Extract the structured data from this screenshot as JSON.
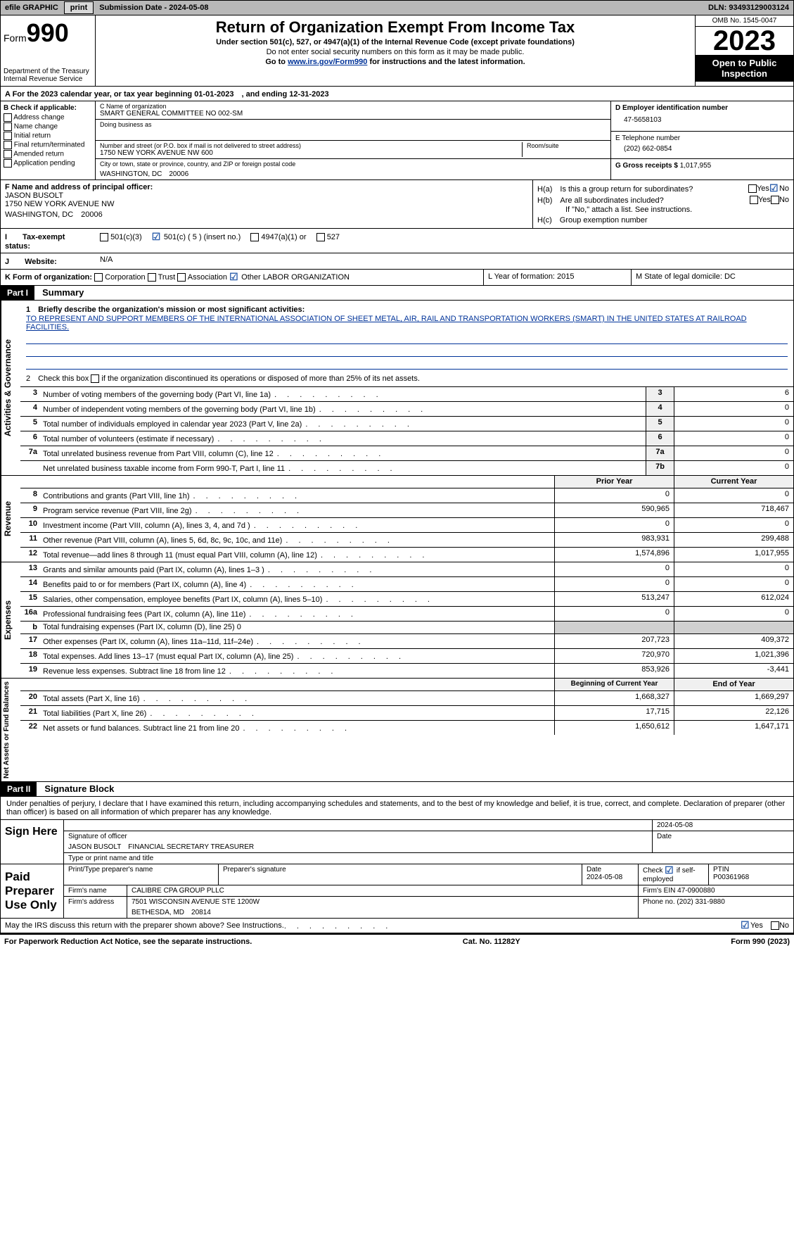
{
  "topbar": {
    "efile": "efile GRAPHIC",
    "print": "print",
    "sub_label": "Submission Date - 2024-05-08",
    "dln_label": "DLN: 93493129003124"
  },
  "header": {
    "form_word": "Form",
    "form_num": "990",
    "dept": "Department of the Treasury\nInternal Revenue Service",
    "title": "Return of Organization Exempt From Income Tax",
    "sub1": "Under section 501(c), 527, or 4947(a)(1) of the Internal Revenue Code (except private foundations)",
    "sub2": "Do not enter social security numbers on this form as it may be made public.",
    "sub3_pre": "Go to ",
    "sub3_link": "www.irs.gov/Form990",
    "sub3_post": " for instructions and the latest information.",
    "omb": "OMB No. 1545-0047",
    "year": "2023",
    "otp": "Open to Public Inspection"
  },
  "rowA": "A For the 2023 calendar year, or tax year beginning 01-01-2023　, and ending 12-31-2023",
  "colB": {
    "header": "B Check if applicable:",
    "opts": [
      "Address change",
      "Name change",
      "Initial return",
      "Final return/terminated",
      "Amended return",
      "Application pending"
    ]
  },
  "colC": {
    "name_label": "C Name of organization",
    "name": "SMART GENERAL COMMITTEE NO 002-SM",
    "dba_label": "Doing business as",
    "dba": "",
    "addr_label": "Number and street (or P.O. box if mail is not delivered to street address)",
    "addr": "1750 NEW YORK AVENUE NW 600",
    "room_label": "Room/suite",
    "room": "",
    "city_label": "City or town, state or province, country, and ZIP or foreign postal code",
    "city": "WASHINGTON, DC　20006"
  },
  "colDE": {
    "d_label": "D Employer identification number",
    "d_val": "47-5658103",
    "e_label": "E Telephone number",
    "e_val": "(202) 662-0854",
    "g_label": "G Gross receipts $",
    "g_val": "1,017,955"
  },
  "colF": {
    "label": "F Name and address of principal officer:",
    "name": "JASON BUSOLT",
    "addr1": "1750 NEW YORK AVENUE NW",
    "addr2": "WASHINGTON, DC　20006"
  },
  "colH": {
    "ha": "H(a)　Is this a group return for subordinates?",
    "hb": "H(b)　Are all subordinates included?",
    "hb_note": "If \"No,\" attach a list. See instructions.",
    "hc": "H(c)　Group exemption number"
  },
  "rowI": {
    "label": "I　　Tax-exempt status:",
    "o1": "501(c)(3)",
    "o2": "501(c) ( 5 ) (insert no.)",
    "o3": "4947(a)(1) or",
    "o4": "527"
  },
  "rowJ": {
    "label": "J　　Website:",
    "val": "N/A"
  },
  "rowK": {
    "k_pre": "K Form of organization:",
    "k_opts": [
      "Corporation",
      "Trust",
      "Association",
      "Other"
    ],
    "k_other": "LABOR ORGANIZATION",
    "l": "L Year of formation: 2015",
    "m": "M State of legal domicile: DC"
  },
  "part1": {
    "bar": "Part I",
    "title": "Summary"
  },
  "mission": {
    "q1_label": "1　Briefly describe the organization's mission or most significant activities:",
    "q1_text": "TO REPRESENT AND SUPPORT MEMBERS OF THE INTERNATIONAL ASSOCIATION OF SHEET METAL, AIR, RAIL AND TRANSPORTATION WORKERS (SMART) IN THE UNITED STATES AT RAILROAD FACILITIES.",
    "q2": "2　Check this box　　if the organization discontinued its operations or disposed of more than 25% of its net assets."
  },
  "gov_rows": [
    {
      "n": "3",
      "d": "Number of voting members of the governing body (Part VI, line 1a)",
      "box": "3",
      "v": "6"
    },
    {
      "n": "4",
      "d": "Number of independent voting members of the governing body (Part VI, line 1b)",
      "box": "4",
      "v": "0"
    },
    {
      "n": "5",
      "d": "Total number of individuals employed in calendar year 2023 (Part V, line 2a)",
      "box": "5",
      "v": "0"
    },
    {
      "n": "6",
      "d": "Total number of volunteers (estimate if necessary)",
      "box": "6",
      "v": "0"
    },
    {
      "n": "7a",
      "d": "Total unrelated business revenue from Part VIII, column (C), line 12",
      "box": "7a",
      "v": "0"
    },
    {
      "n": "",
      "d": "Net unrelated business taxable income from Form 990-T, Part I, line 11",
      "box": "7b",
      "v": "0"
    }
  ],
  "rev_header": {
    "c1": "Prior Year",
    "c2": "Current Year"
  },
  "rev_rows": [
    {
      "n": "8",
      "d": "Contributions and grants (Part VIII, line 1h)",
      "v1": "0",
      "v2": "0"
    },
    {
      "n": "9",
      "d": "Program service revenue (Part VIII, line 2g)",
      "v1": "590,965",
      "v2": "718,467"
    },
    {
      "n": "10",
      "d": "Investment income (Part VIII, column (A), lines 3, 4, and 7d )",
      "v1": "0",
      "v2": "0"
    },
    {
      "n": "11",
      "d": "Other revenue (Part VIII, column (A), lines 5, 6d, 8c, 9c, 10c, and 11e)",
      "v1": "983,931",
      "v2": "299,488"
    },
    {
      "n": "12",
      "d": "Total revenue—add lines 8 through 11 (must equal Part VIII, column (A), line 12)",
      "v1": "1,574,896",
      "v2": "1,017,955"
    }
  ],
  "exp_rows": [
    {
      "n": "13",
      "d": "Grants and similar amounts paid (Part IX, column (A), lines 1–3 )",
      "v1": "0",
      "v2": "0"
    },
    {
      "n": "14",
      "d": "Benefits paid to or for members (Part IX, column (A), line 4)",
      "v1": "0",
      "v2": "0"
    },
    {
      "n": "15",
      "d": "Salaries, other compensation, employee benefits (Part IX, column (A), lines 5–10)",
      "v1": "513,247",
      "v2": "612,024"
    },
    {
      "n": "16a",
      "d": "Professional fundraising fees (Part IX, column (A), line 11e)",
      "v1": "0",
      "v2": "0"
    },
    {
      "n": "b",
      "d": "Total fundraising expenses (Part IX, column (D), line 25) 0",
      "v1": "",
      "v2": "",
      "grey": true
    },
    {
      "n": "17",
      "d": "Other expenses (Part IX, column (A), lines 11a–11d, 11f–24e)",
      "v1": "207,723",
      "v2": "409,372"
    },
    {
      "n": "18",
      "d": "Total expenses. Add lines 13–17 (must equal Part IX, column (A), line 25)",
      "v1": "720,970",
      "v2": "1,021,396"
    },
    {
      "n": "19",
      "d": "Revenue less expenses. Subtract line 18 from line 12",
      "v1": "853,926",
      "v2": "-3,441"
    }
  ],
  "na_header": {
    "c1": "Beginning of Current Year",
    "c2": "End of Year"
  },
  "na_rows": [
    {
      "n": "20",
      "d": "Total assets (Part X, line 16)",
      "v1": "1,668,327",
      "v2": "1,669,297"
    },
    {
      "n": "21",
      "d": "Total liabilities (Part X, line 26)",
      "v1": "17,715",
      "v2": "22,126"
    },
    {
      "n": "22",
      "d": "Net assets or fund balances. Subtract line 21 from line 20",
      "v1": "1,650,612",
      "v2": "1,647,171"
    }
  ],
  "vtabs": {
    "gov": "Activities & Governance",
    "rev": "Revenue",
    "exp": "Expenses",
    "na": "Net Assets or Fund Balances"
  },
  "part2": {
    "bar": "Part II",
    "title": "Signature Block",
    "text": "Under penalties of perjury, I declare that I have examined this return, including accompanying schedules and statements, and to the best of my knowledge and belief, it is true, correct, and complete. Declaration of preparer (other than officer) is based on all information of which preparer has any knowledge."
  },
  "sign": {
    "left": "Sign Here",
    "sig_label": "Signature of officer",
    "date_label": "Date",
    "date": "2024-05-08",
    "name": "JASON BUSOLT　FINANCIAL SECRETARY TREASURER",
    "name_label": "Type or print name and title"
  },
  "paid": {
    "left": "Paid Preparer Use Only",
    "r1": {
      "c1l": "Print/Type preparer's name",
      "c1": "",
      "c2l": "Preparer's signature",
      "c2": "",
      "c3l": "Date",
      "c3": "2024-05-08",
      "c4l": "Check",
      "c4s": "if self-employed",
      "c5l": "PTIN",
      "c5": "P00361968"
    },
    "r2": {
      "l": "Firm's name",
      "v": "CALIBRE CPA GROUP PLLC",
      "r": "Firm's EIN",
      "rv": "47-0900880"
    },
    "r3": {
      "l": "Firm's address",
      "v1": "7501 WISCONSIN AVENUE STE 1200W",
      "v2": "BETHESDA, MD　20814",
      "r": "Phone no.",
      "rv": "(202) 331-9880"
    }
  },
  "footer": {
    "q": "May the IRS discuss this return with the preparer shown above? See Instructions.",
    "yes": "Yes",
    "no": "No"
  },
  "bottom": {
    "l": "For Paperwork Reduction Act Notice, see the separate instructions.",
    "c": "Cat. No. 11282Y",
    "r": "Form 990 (2023)"
  },
  "colors": {
    "link": "#003399",
    "check": "#2a5caa"
  }
}
